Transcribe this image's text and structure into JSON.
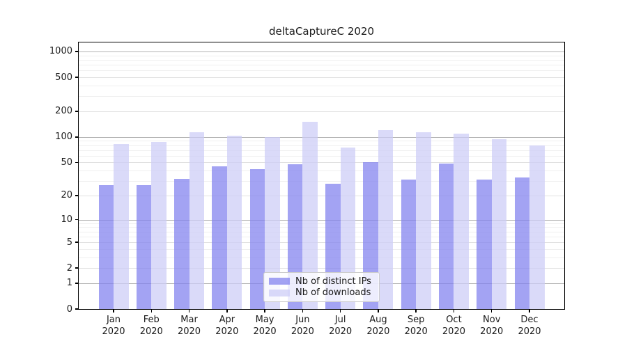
{
  "title": "deltaCaptureC 2020",
  "chart_data": {
    "type": "bar",
    "title": "deltaCaptureC 2020",
    "categories": [
      "Jan",
      "Feb",
      "Mar",
      "Apr",
      "May",
      "Jun",
      "Jul",
      "Aug",
      "Sep",
      "Oct",
      "Nov",
      "Dec"
    ],
    "year": "2020",
    "series": [
      {
        "name": "Nb of distinct IPs",
        "color": "#a5a5f2",
        "fill": "rgba(128,128,238,0.72)",
        "values": [
          27,
          27,
          32,
          45,
          42,
          48,
          28,
          50,
          31,
          49,
          31,
          33
        ]
      },
      {
        "name": "Nb of downloads",
        "color": "#dadaf8",
        "fill": "rgba(204,204,246,0.72)",
        "values": [
          82,
          87,
          114,
          104,
          100,
          150,
          75,
          120,
          114,
          109,
          95,
          80
        ]
      }
    ],
    "yscale": "log1p",
    "ylim": [
      0,
      1275
    ],
    "yticks": [
      0,
      1,
      2,
      5,
      10,
      20,
      50,
      100,
      200,
      500,
      1000
    ],
    "grid": "both",
    "legend_position": "lower center"
  },
  "legend": {
    "items": [
      {
        "label": "Nb of distinct IPs",
        "color": "#a5a5f2"
      },
      {
        "label": "Nb of downloads",
        "color": "#dadaf8"
      }
    ]
  },
  "colors": {
    "background": "#ffffff",
    "grid_major": "#b3b3b3",
    "grid_mid": "#e0e0e0",
    "grid_minor": "#efefef",
    "axis": "#000000",
    "legend_border": "#cccccc",
    "text": "#1a1a1a"
  }
}
